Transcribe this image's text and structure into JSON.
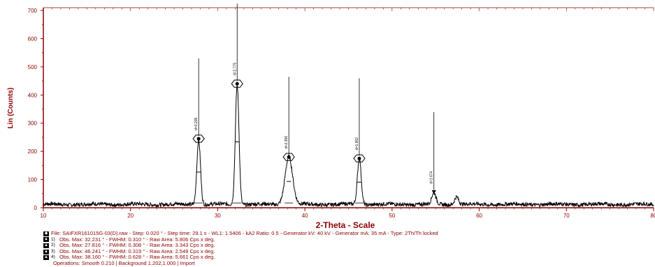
{
  "chart_data": {
    "type": "line",
    "xlabel": "2-Theta - Scale",
    "ylabel": "Lin (Counts)",
    "xlim": [
      10,
      80
    ],
    "ylim": [
      0,
      700
    ],
    "x_ticks": [
      10,
      20,
      30,
      40,
      50,
      60,
      70,
      80
    ],
    "y_ticks": [
      0,
      100,
      200,
      300,
      400,
      500,
      600,
      700
    ],
    "grid": false,
    "colors": {
      "axis": "#8b0000",
      "trace": "#000000"
    },
    "background": {
      "baseline": 12,
      "noise": 7
    },
    "peaks": [
      {
        "center": 27.816,
        "fwhm": 0.308,
        "height": 230,
        "marker_y": 245,
        "label": "d=3.205"
      },
      {
        "center": 32.231,
        "fwhm": 0.31,
        "height": 425,
        "marker_y": 440,
        "label": "d=2.775"
      },
      {
        "center": 38.16,
        "fwhm": 0.628,
        "height": 170,
        "marker_y": 180,
        "label": "d=2.356"
      },
      {
        "center": 46.241,
        "fwhm": 0.319,
        "height": 165,
        "marker_y": 175,
        "label": "d=1.962"
      },
      {
        "center": 54.8,
        "fwhm": 0.35,
        "height": 40,
        "marker_y": 55,
        "label": "d=1.674"
      },
      {
        "center": 57.4,
        "fwhm": 0.35,
        "height": 28,
        "marker_y": null,
        "label": ""
      }
    ]
  },
  "info": {
    "file_line": "File: SAIFXR161015G-03(D).raw - Step: 0.020 ° - Step time: 29.1 s - WL1: 1.5406 - kA2 Ratio: 0.5 - Generator kV: 40 kV - Generator mA: 35 mA - Type: 2Th/Th locked",
    "obs": [
      {
        "num": "1)",
        "text": "Obs. Max: 32.231 ° - FWHM: 0.310 ° - Raw Area: 5.806 Cps x deg."
      },
      {
        "num": "2)",
        "text": "Obs. Max: 27.816 ° - FWHM: 0.308 ° - Raw Area: 3.343 Cps x deg."
      },
      {
        "num": "3)",
        "text": "Obs. Max: 46.241 ° - FWHM: 0.319 ° - Raw Area: 2.549 Cps x deg."
      },
      {
        "num": "4)",
        "text": "Obs. Max: 38.160 ° - FWHM: 0.628 ° - Raw Area: 5.661 Cps x deg."
      }
    ],
    "operations": "Operations: Smooth 0.210 | Background 1.202,1.000 | Import"
  }
}
